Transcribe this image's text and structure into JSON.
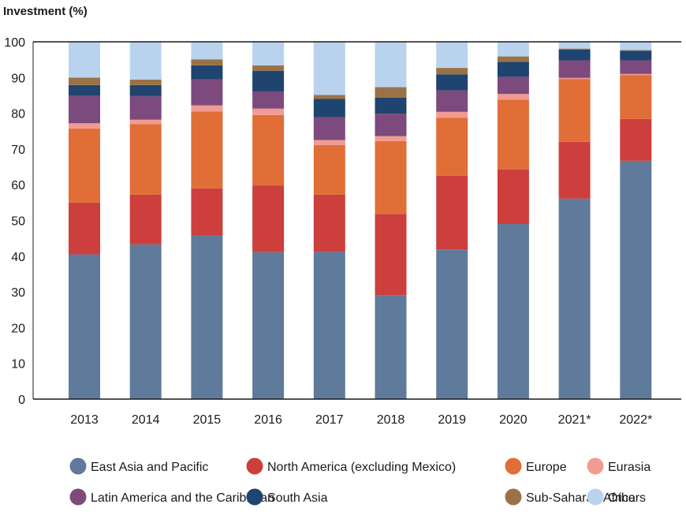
{
  "chart_data": {
    "type": "bar",
    "stacked": true,
    "ylabel": "Investment (%)",
    "ylim": [
      0,
      100
    ],
    "yticks": [
      0,
      10,
      20,
      30,
      40,
      50,
      60,
      70,
      80,
      90,
      100
    ],
    "grid": false,
    "legend_position": "bottom",
    "categories": [
      "2013",
      "2014",
      "2015",
      "2016",
      "2017",
      "2018",
      "2019",
      "2020",
      "2021*",
      "2022*"
    ],
    "series": [
      {
        "name": "East Asia and Pacific",
        "color": "#5f7a9b",
        "values": [
          40.5,
          43.3,
          45.8,
          41.1,
          41.2,
          29.1,
          41.9,
          49.0,
          56.1,
          66.7
        ]
      },
      {
        "name": "North America (excluding Mexico)",
        "color": "#cc3f3c",
        "values": [
          14.5,
          13.9,
          13.2,
          18.7,
          16.0,
          22.7,
          20.6,
          15.3,
          15.9,
          11.7
        ]
      },
      {
        "name": "Europe",
        "color": "#e06e36",
        "values": [
          20.7,
          19.8,
          21.5,
          19.7,
          13.9,
          20.4,
          16.2,
          19.5,
          17.6,
          12.3
        ]
      },
      {
        "name": "Eurasia",
        "color": "#f19b91",
        "values": [
          1.5,
          1.2,
          1.7,
          1.8,
          1.4,
          1.4,
          1.7,
          1.6,
          0.3,
          0.3
        ]
      },
      {
        "name": "Latin America and the Caribbean",
        "color": "#7d4a7d",
        "values": [
          7.7,
          6.6,
          7.3,
          4.8,
          6.4,
          6.3,
          6.0,
          4.8,
          4.9,
          3.8
        ]
      },
      {
        "name": "South Asia",
        "color": "#1f446f",
        "values": [
          3.0,
          3.1,
          3.9,
          5.8,
          5.1,
          4.5,
          4.5,
          4.2,
          3.0,
          2.7
        ]
      },
      {
        "name": "Sub-Saharan Africa",
        "color": "#9b7246",
        "values": [
          2.1,
          1.5,
          1.7,
          1.5,
          1.1,
          2.9,
          1.8,
          1.5,
          0.3,
          0.2
        ]
      },
      {
        "name": "Others",
        "color": "#b9d3ee",
        "values": [
          10.0,
          10.6,
          4.9,
          6.6,
          14.9,
          12.7,
          7.3,
          4.1,
          1.9,
          2.3
        ]
      }
    ]
  }
}
